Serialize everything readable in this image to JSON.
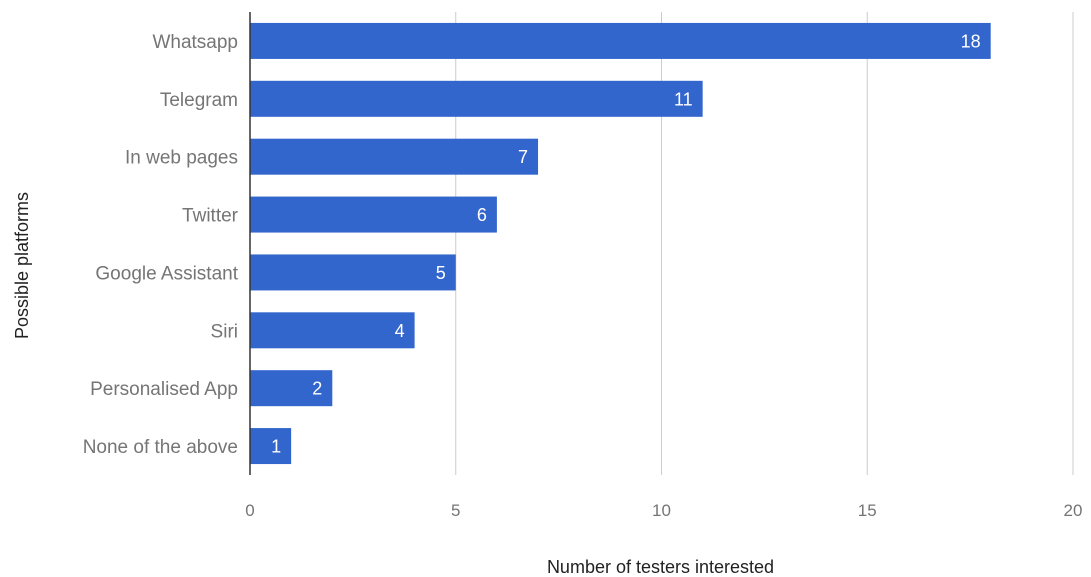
{
  "chart_data": {
    "type": "bar",
    "orientation": "horizontal",
    "categories": [
      "Whatsapp",
      "Telegram",
      "In web pages",
      "Twitter",
      "Google Assistant",
      "Siri",
      "Personalised App",
      "None of the above"
    ],
    "values": [
      18,
      11,
      7,
      6,
      5,
      4,
      2,
      1
    ],
    "title": "",
    "xlabel": "Number of testers interested",
    "ylabel": "Possible platforms",
    "xlim": [
      0,
      20
    ],
    "xticks": [
      0,
      5,
      10,
      15,
      20
    ],
    "grid": true,
    "data_labels": true,
    "bar_color": "#3366cc",
    "grid_color": "#cccccc",
    "axis_color": "#333333"
  }
}
